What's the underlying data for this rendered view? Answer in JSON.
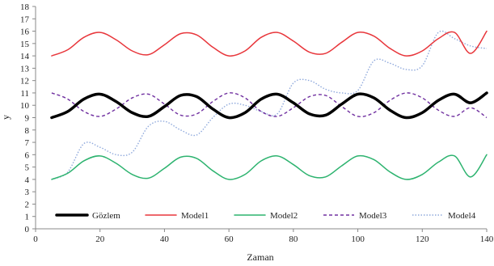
{
  "chart_data": {
    "type": "line",
    "title": "",
    "xlabel": "Zaman",
    "ylabel": "y",
    "xlim": [
      0,
      140
    ],
    "ylim": [
      0,
      18
    ],
    "x_ticks": [
      0,
      20,
      40,
      60,
      80,
      100,
      120,
      140
    ],
    "y_ticks": [
      0,
      1,
      2,
      3,
      4,
      5,
      6,
      7,
      8,
      9,
      10,
      11,
      12,
      13,
      14,
      15,
      16,
      17,
      18
    ],
    "grid": false,
    "legend_position": "bottom",
    "x": [
      5,
      10,
      15,
      20,
      25,
      30,
      35,
      40,
      45,
      50,
      55,
      60,
      65,
      70,
      75,
      80,
      85,
      90,
      95,
      100,
      105,
      110,
      115,
      120,
      125,
      130,
      135,
      140
    ],
    "series": [
      {
        "name": "Gözlem",
        "color": "#000000",
        "style": "solid-thick",
        "values": [
          9.0,
          9.5,
          10.5,
          10.9,
          10.3,
          9.4,
          9.1,
          9.9,
          10.8,
          10.7,
          9.7,
          9.0,
          9.4,
          10.5,
          10.9,
          10.2,
          9.3,
          9.2,
          10.1,
          10.9,
          10.6,
          9.6,
          9.0,
          9.4,
          10.4,
          10.9,
          10.2,
          11.0
        ]
      },
      {
        "name": "Model1",
        "color": "#e8363b",
        "style": "solid",
        "values": [
          14.0,
          14.5,
          15.5,
          15.9,
          15.3,
          14.4,
          14.1,
          14.9,
          15.8,
          15.7,
          14.7,
          14.0,
          14.4,
          15.5,
          15.9,
          15.2,
          14.3,
          14.2,
          15.1,
          15.9,
          15.6,
          14.6,
          14.0,
          14.4,
          15.4,
          15.9,
          14.2,
          16.0
        ]
      },
      {
        "name": "Model2",
        "color": "#2db36f",
        "style": "solid",
        "values": [
          4.0,
          4.5,
          5.5,
          5.9,
          5.3,
          4.4,
          4.1,
          4.9,
          5.8,
          5.7,
          4.7,
          4.0,
          4.4,
          5.5,
          5.9,
          5.2,
          4.3,
          4.2,
          5.1,
          5.9,
          5.6,
          4.6,
          4.0,
          4.4,
          5.4,
          5.9,
          4.2,
          6.0
        ]
      },
      {
        "name": "Model3",
        "color": "#7030a0",
        "style": "dashed",
        "values": [
          11.0,
          10.5,
          9.5,
          9.1,
          9.7,
          10.6,
          10.9,
          10.1,
          9.2,
          9.3,
          10.3,
          11.0,
          10.6,
          9.5,
          9.1,
          9.8,
          10.7,
          10.8,
          9.9,
          9.1,
          9.4,
          10.4,
          11.0,
          10.6,
          9.6,
          9.1,
          9.8,
          9.0
        ]
      },
      {
        "name": "Model4",
        "color": "#8fa9dc",
        "style": "dotted",
        "values": [
          4.0,
          4.6,
          6.9,
          6.6,
          6.0,
          6.2,
          8.3,
          8.7,
          8.0,
          7.6,
          9.0,
          10.1,
          10.0,
          9.5,
          9.3,
          11.8,
          12.0,
          11.3,
          11.0,
          11.2,
          13.6,
          13.4,
          12.9,
          13.2,
          15.9,
          15.4,
          14.8,
          14.6
        ]
      }
    ]
  }
}
